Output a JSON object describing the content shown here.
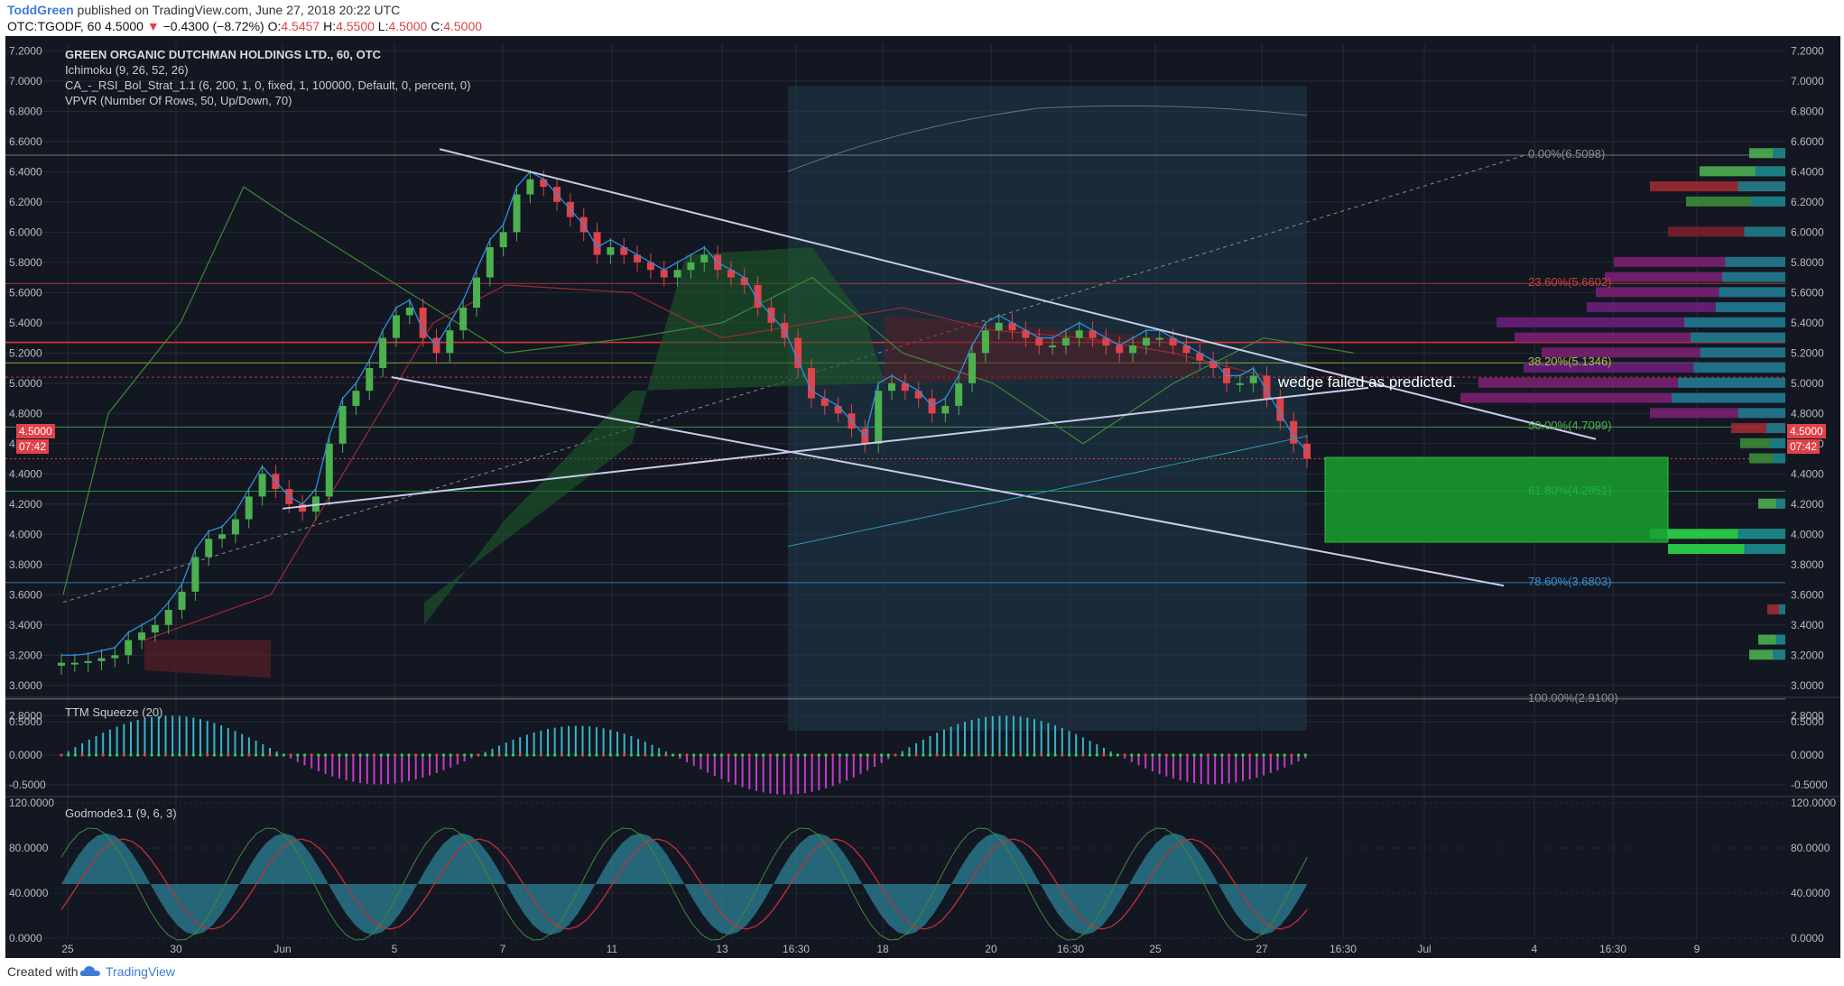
{
  "header": {
    "user": "ToddGreen",
    "published": "published on TradingView.com, June 27, 2018 20:22 UTC",
    "symbol": "OTC:TGODF, 60",
    "last": "4.5000",
    "change": "−0.4300 (−8.72%)",
    "open_label": "O:",
    "open": "4.5457",
    "high_label": "H:",
    "high": "4.5500",
    "low_label": "L:",
    "low": "4.5000",
    "close_label": "C:",
    "close": "4.5000"
  },
  "legend": {
    "title": "GREEN ORGANIC DUTCHMAN HOLDINGS LTD., 60, OTC",
    "ind1": "Ichimoku (9, 26, 52, 26)",
    "ind2": "CA_-_RSI_Bol_Strat_1.1 (6, 200, 1, 0, fixed, 1, 100000, Default, 0, percent, 0)",
    "ind3": "VPVR (Number Of Rows, 50, Up/Down, 70)"
  },
  "annotation": "wedge failed as predicted.",
  "price_tag": {
    "price": "4.5000",
    "countdown": "07:42"
  },
  "fib_levels": [
    {
      "label": "0.00%(6.5098)",
      "value": 6.5098,
      "color": "#8a8d93"
    },
    {
      "label": "23.60%(5.6602)",
      "value": 5.6602,
      "color": "#c9423f"
    },
    {
      "label": "38.20%(5.1346)",
      "value": 5.1346,
      "color": "#a6c34a"
    },
    {
      "label": "50.00%(4.7099)",
      "value": 4.7099,
      "color": "#4caf50"
    },
    {
      "label": "61.80%(4.2851)",
      "value": 4.2851,
      "color": "#20b33a"
    },
    {
      "label": "78.60%(3.6803)",
      "value": 3.6803,
      "color": "#3f8fd1"
    },
    {
      "label": "100.00%(2.9100)",
      "value": 2.91,
      "color": "#8a8d93"
    }
  ],
  "subpanes": {
    "ttm": {
      "title": "TTM Squeeze (20)",
      "ticks": [
        "0.5000",
        "0.0000",
        "-0.5000"
      ]
    },
    "godmode": {
      "title": "Godmode3.1 (9, 6, 3)",
      "ticks": [
        "120.0000",
        "80.0000",
        "40.0000",
        "0.0000"
      ]
    }
  },
  "footer": {
    "created": "Created with",
    "brand": "TradingView"
  },
  "colors": {
    "up": "#4caf50",
    "down": "#e0424a",
    "background": "#131722",
    "grid": "#262b36",
    "trendline": "#c8cde8",
    "accent": "#3e7bd6"
  },
  "icons": {
    "brand": "tradingview-cloud-icon"
  },
  "chart_data": {
    "type": "candlestick",
    "title": "GREEN ORGANIC DUTCHMAN HOLDINGS LTD., 60, OTC",
    "ylim": [
      2.7,
      7.25
    ],
    "y_ticks": [
      "7.2000",
      "7.0000",
      "6.8000",
      "6.6000",
      "6.4000",
      "6.2000",
      "6.0000",
      "5.8000",
      "5.6000",
      "5.4000",
      "5.2000",
      "5.0000",
      "4.8000",
      "4.6000",
      "4.4000",
      "4.2000",
      "4.0000",
      "3.8000",
      "3.6000",
      "3.4000",
      "3.2000",
      "3.0000",
      "2.8000"
    ],
    "x_ticks": [
      "25",
      "30",
      "Jun",
      "5",
      "7",
      "11",
      "13",
      "16:30",
      "18",
      "20",
      "16:30",
      "25",
      "27",
      "16:30",
      "Jul",
      "4",
      "16:30",
      "9"
    ],
    "close_series": [
      3.15,
      3.15,
      3.16,
      3.18,
      3.2,
      3.3,
      3.35,
      3.4,
      3.5,
      3.62,
      3.85,
      3.97,
      4.0,
      4.1,
      4.25,
      4.4,
      4.3,
      4.2,
      4.15,
      4.25,
      4.6,
      4.85,
      4.95,
      5.1,
      5.3,
      5.45,
      5.5,
      5.3,
      5.2,
      5.35,
      5.5,
      5.7,
      5.9,
      6.0,
      6.25,
      6.35,
      6.3,
      6.2,
      6.1,
      6.0,
      5.85,
      5.9,
      5.85,
      5.8,
      5.75,
      5.7,
      5.75,
      5.8,
      5.85,
      5.75,
      5.7,
      5.65,
      5.5,
      5.4,
      5.3,
      5.1,
      4.9,
      4.85,
      4.8,
      4.7,
      4.6,
      4.95,
      5.0,
      4.95,
      4.9,
      4.8,
      4.85,
      5.0,
      5.2,
      5.35,
      5.4,
      5.35,
      5.3,
      5.25,
      5.25,
      5.3,
      5.35,
      5.3,
      5.25,
      5.2,
      5.25,
      5.3,
      5.3,
      5.25,
      5.2,
      5.15,
      5.1,
      5.0,
      5.0,
      5.05,
      4.9,
      4.75,
      4.6,
      4.5
    ]
  }
}
